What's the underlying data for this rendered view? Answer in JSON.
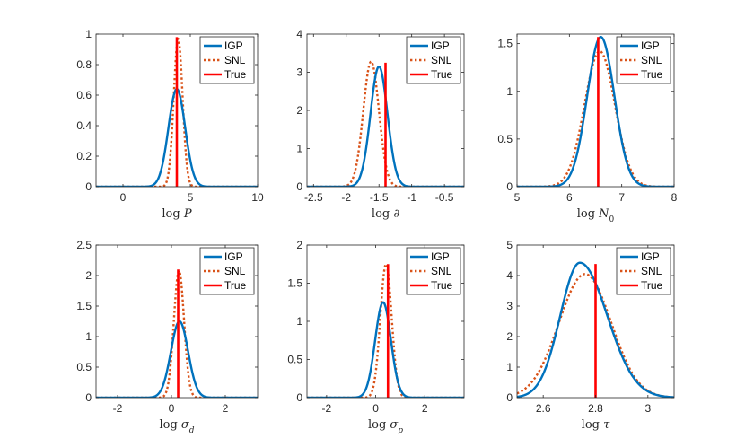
{
  "colors": {
    "igp": "#0072BD",
    "snl": "#D95319",
    "true": "#FF0000",
    "axis": "#262626"
  },
  "legend": {
    "labels": [
      "IGP",
      "SNL",
      "True"
    ]
  },
  "chart_data": [
    {
      "type": "line",
      "title": "",
      "xlabel": "log P",
      "xlabel_parts": [
        {
          "t": "log "
        },
        {
          "t": "P",
          "i": true
        }
      ],
      "xlim": [
        -2,
        10
      ],
      "ylim": [
        0,
        1
      ],
      "xticks": [
        0,
        5,
        10
      ],
      "xtick_labels": [
        "0",
        "5",
        "10"
      ],
      "yticks": [
        0,
        0.2,
        0.4,
        0.6,
        0.8,
        1
      ],
      "ytick_labels": [
        "0",
        "0.2",
        "0.4",
        "0.6",
        "0.8",
        "1"
      ],
      "series": [
        {
          "name": "IGP",
          "dist": "normal",
          "mean": 4.0,
          "sd": 0.62,
          "peak": 0.64
        },
        {
          "name": "SNL",
          "dist": "normal",
          "mean": 4.1,
          "sd": 0.33,
          "peak": 0.97
        }
      ],
      "true_value": {
        "name": "True",
        "x": 4.0,
        "height": 0.98
      }
    },
    {
      "type": "line",
      "title": "",
      "xlabel": "log ∂",
      "xlabel_parts": [
        {
          "t": "log "
        },
        {
          "t": "∂",
          "i": true
        }
      ],
      "xlim": [
        -2.6,
        -0.2
      ],
      "ylim": [
        0,
        4
      ],
      "xticks": [
        -2.5,
        -2,
        -1.5,
        -1,
        -0.5
      ],
      "xtick_labels": [
        "-2.5",
        "-2",
        "-1.5",
        "-1",
        "-0.5"
      ],
      "yticks": [
        0,
        1,
        2,
        3,
        4
      ],
      "ytick_labels": [
        "0",
        "1",
        "2",
        "3",
        "4"
      ],
      "series": [
        {
          "name": "IGP",
          "dist": "normal",
          "mean": -1.5,
          "sd": 0.13,
          "peak": 3.15
        },
        {
          "name": "SNL",
          "dist": "normal",
          "mean": -1.62,
          "sd": 0.12,
          "peak": 3.28
        }
      ],
      "true_value": {
        "name": "True",
        "x": -1.4,
        "height": 3.25
      }
    },
    {
      "type": "line",
      "title": "",
      "xlabel": "log N0",
      "xlabel_parts": [
        {
          "t": "log "
        },
        {
          "t": "N",
          "i": true
        },
        {
          "t": "0",
          "sub": true
        }
      ],
      "xlim": [
        5,
        8
      ],
      "ylim": [
        0,
        1.6
      ],
      "xticks": [
        5,
        6,
        7,
        8
      ],
      "xtick_labels": [
        "5",
        "6",
        "7",
        "8"
      ],
      "yticks": [
        0,
        0.5,
        1,
        1.5
      ],
      "ytick_labels": [
        "0",
        "0.5",
        "1",
        "1.5"
      ],
      "series": [
        {
          "name": "IGP",
          "dist": "normal",
          "mean": 6.6,
          "sd": 0.26,
          "peak": 1.57
        },
        {
          "name": "SNL",
          "dist": "normal",
          "mean": 6.58,
          "sd": 0.29,
          "peak": 1.42
        }
      ],
      "true_value": {
        "name": "True",
        "x": 6.55,
        "height": 1.57
      }
    },
    {
      "type": "line",
      "title": "",
      "xlabel": "log σd",
      "xlabel_parts": [
        {
          "t": "log "
        },
        {
          "t": "σ",
          "i": true
        },
        {
          "t": "d",
          "sub": true,
          "i": true
        }
      ],
      "xlim": [
        -2.8,
        3.2
      ],
      "ylim": [
        0,
        2.5
      ],
      "xticks": [
        -2,
        0,
        2
      ],
      "xtick_labels": [
        "-2",
        "0",
        "2"
      ],
      "yticks": [
        0,
        0.5,
        1,
        1.5,
        2,
        2.5
      ],
      "ytick_labels": [
        "0",
        "0.5",
        "1",
        "1.5",
        "2",
        "2.5"
      ],
      "series": [
        {
          "name": "IGP",
          "dist": "normal",
          "mean": 0.3,
          "sd": 0.32,
          "peak": 1.25
        },
        {
          "name": "SNL",
          "dist": "normal",
          "mean": 0.28,
          "sd": 0.19,
          "peak": 2.08
        }
      ],
      "true_value": {
        "name": "True",
        "x": 0.25,
        "height": 2.1
      }
    },
    {
      "type": "line",
      "title": "",
      "xlabel": "log σp",
      "xlabel_parts": [
        {
          "t": "log "
        },
        {
          "t": "σ",
          "i": true
        },
        {
          "t": "p",
          "sub": true,
          "i": true
        }
      ],
      "xlim": [
        -2.8,
        3.6
      ],
      "ylim": [
        0,
        2
      ],
      "xticks": [
        -2,
        0,
        2
      ],
      "xtick_labels": [
        "-2",
        "0",
        "2"
      ],
      "yticks": [
        0,
        0.5,
        1,
        1.5,
        2
      ],
      "ytick_labels": [
        "0",
        "0.5",
        "1",
        "1.5",
        "2"
      ],
      "series": [
        {
          "name": "IGP",
          "dist": "normal",
          "mean": 0.3,
          "sd": 0.32,
          "peak": 1.25
        },
        {
          "name": "SNL",
          "dist": "normal",
          "mean": 0.42,
          "sd": 0.23,
          "peak": 1.75
        }
      ],
      "true_value": {
        "name": "True",
        "x": 0.5,
        "height": 1.75
      }
    },
    {
      "type": "line",
      "title": "",
      "xlabel": "log τ",
      "xlabel_parts": [
        {
          "t": "log "
        },
        {
          "t": "τ",
          "i": true
        }
      ],
      "xlim": [
        2.5,
        3.1
      ],
      "ylim": [
        0,
        5
      ],
      "xticks": [
        2.6,
        2.8,
        3
      ],
      "xtick_labels": [
        "2.6",
        "2.8",
        "3"
      ],
      "yticks": [
        0,
        1,
        2,
        3,
        4,
        5
      ],
      "ytick_labels": [
        "0",
        "1",
        "2",
        "3",
        "4",
        "5"
      ],
      "series": [
        {
          "name": "IGP",
          "dist": "skew",
          "mode": 2.74,
          "sd_left": 0.075,
          "sd_right": 0.105,
          "peak": 4.42
        },
        {
          "name": "SNL",
          "dist": "skew",
          "mode": 2.76,
          "sd_left": 0.1,
          "sd_right": 0.1,
          "peak": 4.05
        }
      ],
      "true_value": {
        "name": "True",
        "x": 2.8,
        "height": 4.38
      }
    }
  ]
}
